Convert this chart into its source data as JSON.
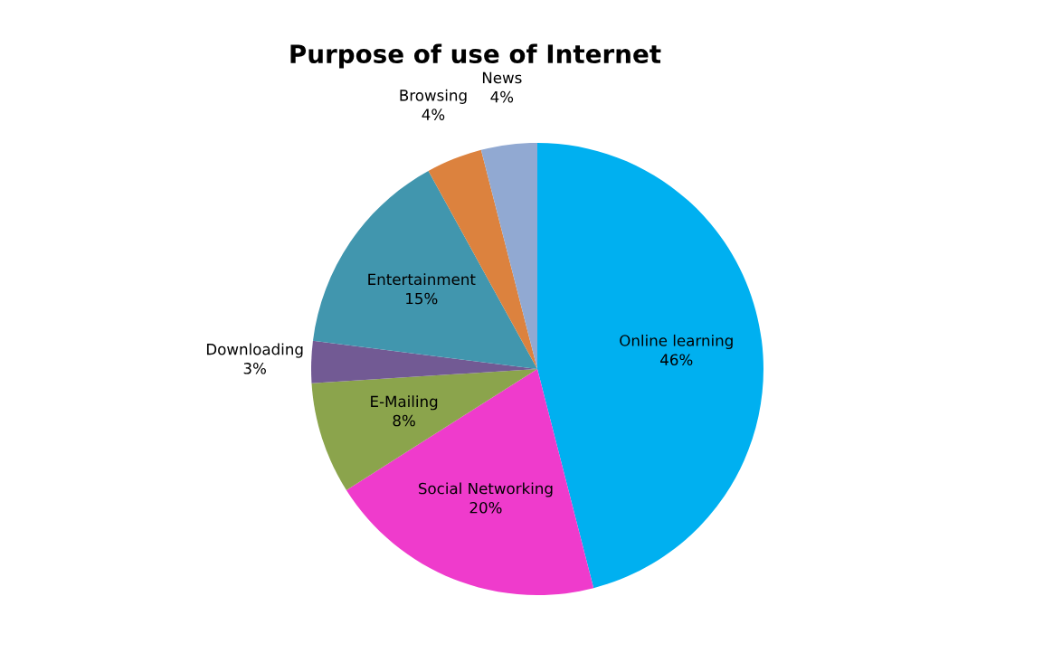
{
  "chart_data": {
    "type": "pie",
    "title": "Purpose of use of Internet",
    "categories": [
      "Online learning",
      "Social Networking",
      "E-Mailing",
      "Downloading",
      "Entertainment",
      "Browsing",
      "News"
    ],
    "values": [
      46,
      20,
      8,
      3,
      15,
      4,
      4
    ],
    "colors": [
      "#00b0f0",
      "#ef3bcc",
      "#8ba44c",
      "#725a94",
      "#4196ae",
      "#dc823e",
      "#91a9d2"
    ],
    "value_labels": [
      "46%",
      "20%",
      "8%",
      "3%",
      "15%",
      "4%",
      "4%"
    ],
    "legend": false
  }
}
